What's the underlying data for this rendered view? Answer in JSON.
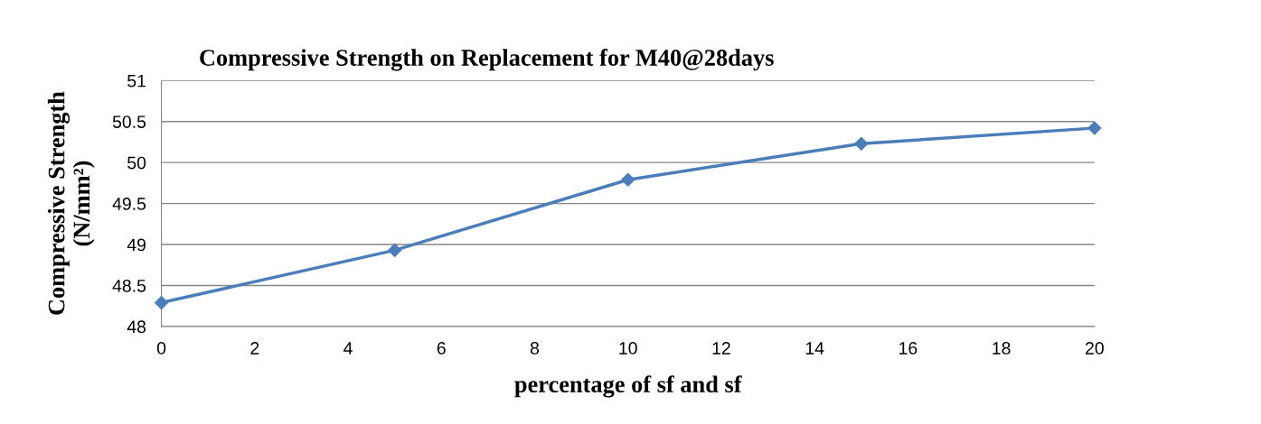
{
  "chart_data": {
    "type": "line",
    "title": "Compressive Strength on Replacement for M40@28days",
    "xlabel": "percentage of sf and sf",
    "ylabel": "Compressive Strength\n(N/mm²)",
    "x": [
      0,
      5,
      10,
      15,
      20
    ],
    "series": [
      {
        "color": "#4a7ebb",
        "values": [
          48.29,
          48.93,
          49.79,
          50.23,
          50.42
        ]
      }
    ],
    "xlim": [
      0,
      20
    ],
    "xticks": [
      0,
      2,
      4,
      6,
      8,
      10,
      12,
      14,
      16,
      18,
      20
    ],
    "ylim": [
      48,
      51
    ],
    "yticks": [
      48,
      48.5,
      49,
      49.5,
      50,
      50.5,
      51
    ],
    "grid": "y",
    "marker": "diamond",
    "line_style": "solid",
    "legend": false
  }
}
